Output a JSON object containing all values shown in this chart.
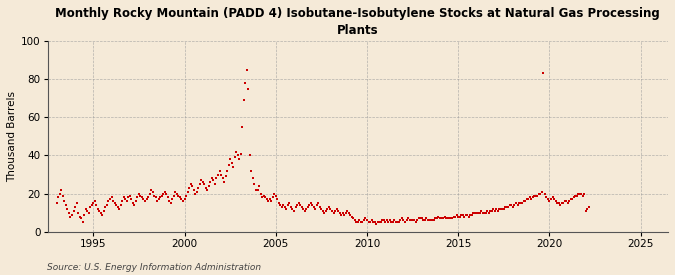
{
  "title": "Monthly Rocky Mountain (PADD 4) Isobutane-Isobutylene Stocks at Natural Gas Processing\nPlants",
  "ylabel": "Thousand Barrels",
  "source": "Source: U.S. Energy Information Administration",
  "background_color": "#f5ead8",
  "plot_bg_color": "#f5ead8",
  "dot_color": "#cc0000",
  "dot_size": 3,
  "xlim": [
    1992.5,
    2026.5
  ],
  "ylim": [
    0,
    100
  ],
  "yticks": [
    0,
    20,
    40,
    60,
    80,
    100
  ],
  "xticks": [
    1995,
    2000,
    2005,
    2010,
    2015,
    2020,
    2025
  ],
  "data": [
    [
      1993.0,
      15
    ],
    [
      1993.083,
      18
    ],
    [
      1993.167,
      20
    ],
    [
      1993.25,
      22
    ],
    [
      1993.333,
      19
    ],
    [
      1993.417,
      16
    ],
    [
      1993.5,
      14
    ],
    [
      1993.583,
      12
    ],
    [
      1993.667,
      10
    ],
    [
      1993.75,
      8
    ],
    [
      1993.833,
      9
    ],
    [
      1993.917,
      11
    ],
    [
      1994.0,
      13
    ],
    [
      1994.083,
      15
    ],
    [
      1994.167,
      10
    ],
    [
      1994.25,
      8
    ],
    [
      1994.333,
      7
    ],
    [
      1994.417,
      5
    ],
    [
      1994.5,
      9
    ],
    [
      1994.583,
      12
    ],
    [
      1994.667,
      11
    ],
    [
      1994.75,
      10
    ],
    [
      1994.833,
      13
    ],
    [
      1994.917,
      14
    ],
    [
      1995.0,
      15
    ],
    [
      1995.083,
      16
    ],
    [
      1995.167,
      14
    ],
    [
      1995.25,
      12
    ],
    [
      1995.333,
      11
    ],
    [
      1995.417,
      10
    ],
    [
      1995.5,
      9
    ],
    [
      1995.583,
      11
    ],
    [
      1995.667,
      13
    ],
    [
      1995.75,
      14
    ],
    [
      1995.833,
      16
    ],
    [
      1995.917,
      17
    ],
    [
      1996.0,
      18
    ],
    [
      1996.083,
      16
    ],
    [
      1996.167,
      15
    ],
    [
      1996.25,
      14
    ],
    [
      1996.333,
      13
    ],
    [
      1996.417,
      12
    ],
    [
      1996.5,
      14
    ],
    [
      1996.583,
      16
    ],
    [
      1996.667,
      18
    ],
    [
      1996.75,
      17
    ],
    [
      1996.833,
      16
    ],
    [
      1996.917,
      18
    ],
    [
      1997.0,
      19
    ],
    [
      1997.083,
      17
    ],
    [
      1997.167,
      15
    ],
    [
      1997.25,
      14
    ],
    [
      1997.333,
      16
    ],
    [
      1997.417,
      18
    ],
    [
      1997.5,
      20
    ],
    [
      1997.583,
      19
    ],
    [
      1997.667,
      18
    ],
    [
      1997.75,
      17
    ],
    [
      1997.833,
      16
    ],
    [
      1997.917,
      17
    ],
    [
      1998.0,
      18
    ],
    [
      1998.083,
      20
    ],
    [
      1998.167,
      22
    ],
    [
      1998.25,
      21
    ],
    [
      1998.333,
      19
    ],
    [
      1998.417,
      18
    ],
    [
      1998.5,
      16
    ],
    [
      1998.583,
      17
    ],
    [
      1998.667,
      18
    ],
    [
      1998.75,
      19
    ],
    [
      1998.833,
      20
    ],
    [
      1998.917,
      21
    ],
    [
      1999.0,
      20
    ],
    [
      1999.083,
      18
    ],
    [
      1999.167,
      16
    ],
    [
      1999.25,
      15
    ],
    [
      1999.333,
      17
    ],
    [
      1999.417,
      19
    ],
    [
      1999.5,
      21
    ],
    [
      1999.583,
      20
    ],
    [
      1999.667,
      19
    ],
    [
      1999.75,
      18
    ],
    [
      1999.833,
      17
    ],
    [
      1999.917,
      16
    ],
    [
      2000.0,
      17
    ],
    [
      2000.083,
      19
    ],
    [
      2000.167,
      21
    ],
    [
      2000.25,
      23
    ],
    [
      2000.333,
      25
    ],
    [
      2000.417,
      24
    ],
    [
      2000.5,
      22
    ],
    [
      2000.583,
      20
    ],
    [
      2000.667,
      21
    ],
    [
      2000.75,
      23
    ],
    [
      2000.833,
      25
    ],
    [
      2000.917,
      27
    ],
    [
      2001.0,
      26
    ],
    [
      2001.083,
      25
    ],
    [
      2001.167,
      23
    ],
    [
      2001.25,
      22
    ],
    [
      2001.333,
      24
    ],
    [
      2001.417,
      26
    ],
    [
      2001.5,
      28
    ],
    [
      2001.583,
      27
    ],
    [
      2001.667,
      25
    ],
    [
      2001.75,
      28
    ],
    [
      2001.833,
      30
    ],
    [
      2001.917,
      32
    ],
    [
      2002.0,
      30
    ],
    [
      2002.083,
      28
    ],
    [
      2002.167,
      26
    ],
    [
      2002.25,
      29
    ],
    [
      2002.333,
      32
    ],
    [
      2002.417,
      35
    ],
    [
      2002.5,
      38
    ],
    [
      2002.583,
      36
    ],
    [
      2002.667,
      34
    ],
    [
      2002.75,
      39
    ],
    [
      2002.833,
      42
    ],
    [
      2002.917,
      40
    ],
    [
      2003.0,
      38
    ],
    [
      2003.083,
      41
    ],
    [
      2003.167,
      55
    ],
    [
      2003.25,
      69
    ],
    [
      2003.333,
      78
    ],
    [
      2003.417,
      85
    ],
    [
      2003.5,
      75
    ],
    [
      2003.583,
      40
    ],
    [
      2003.667,
      32
    ],
    [
      2003.75,
      28
    ],
    [
      2003.833,
      25
    ],
    [
      2003.917,
      22
    ],
    [
      2004.0,
      22
    ],
    [
      2004.083,
      24
    ],
    [
      2004.167,
      20
    ],
    [
      2004.25,
      18
    ],
    [
      2004.333,
      19
    ],
    [
      2004.417,
      18
    ],
    [
      2004.5,
      17
    ],
    [
      2004.583,
      16
    ],
    [
      2004.667,
      17
    ],
    [
      2004.75,
      16
    ],
    [
      2004.833,
      18
    ],
    [
      2004.917,
      20
    ],
    [
      2005.0,
      19
    ],
    [
      2005.083,
      17
    ],
    [
      2005.167,
      15
    ],
    [
      2005.25,
      14
    ],
    [
      2005.333,
      13
    ],
    [
      2005.417,
      14
    ],
    [
      2005.5,
      13
    ],
    [
      2005.583,
      12
    ],
    [
      2005.667,
      14
    ],
    [
      2005.75,
      15
    ],
    [
      2005.833,
      13
    ],
    [
      2005.917,
      12
    ],
    [
      2006.0,
      11
    ],
    [
      2006.083,
      13
    ],
    [
      2006.167,
      14
    ],
    [
      2006.25,
      15
    ],
    [
      2006.333,
      14
    ],
    [
      2006.417,
      13
    ],
    [
      2006.5,
      12
    ],
    [
      2006.583,
      11
    ],
    [
      2006.667,
      12
    ],
    [
      2006.75,
      13
    ],
    [
      2006.833,
      14
    ],
    [
      2006.917,
      15
    ],
    [
      2007.0,
      14
    ],
    [
      2007.083,
      13
    ],
    [
      2007.167,
      12
    ],
    [
      2007.25,
      14
    ],
    [
      2007.333,
      15
    ],
    [
      2007.417,
      13
    ],
    [
      2007.5,
      12
    ],
    [
      2007.583,
      11
    ],
    [
      2007.667,
      10
    ],
    [
      2007.75,
      11
    ],
    [
      2007.833,
      12
    ],
    [
      2007.917,
      13
    ],
    [
      2008.0,
      12
    ],
    [
      2008.083,
      11
    ],
    [
      2008.167,
      10
    ],
    [
      2008.25,
      11
    ],
    [
      2008.333,
      12
    ],
    [
      2008.417,
      11
    ],
    [
      2008.5,
      10
    ],
    [
      2008.583,
      9
    ],
    [
      2008.667,
      10
    ],
    [
      2008.75,
      9
    ],
    [
      2008.833,
      10
    ],
    [
      2008.917,
      11
    ],
    [
      2009.0,
      10
    ],
    [
      2009.083,
      9
    ],
    [
      2009.167,
      8
    ],
    [
      2009.25,
      7
    ],
    [
      2009.333,
      6
    ],
    [
      2009.417,
      5
    ],
    [
      2009.5,
      5
    ],
    [
      2009.583,
      6
    ],
    [
      2009.667,
      5
    ],
    [
      2009.75,
      5
    ],
    [
      2009.833,
      6
    ],
    [
      2009.917,
      7
    ],
    [
      2010.0,
      6
    ],
    [
      2010.083,
      5
    ],
    [
      2010.167,
      5
    ],
    [
      2010.25,
      6
    ],
    [
      2010.333,
      5
    ],
    [
      2010.417,
      5
    ],
    [
      2010.5,
      4
    ],
    [
      2010.583,
      5
    ],
    [
      2010.667,
      5
    ],
    [
      2010.75,
      5
    ],
    [
      2010.833,
      6
    ],
    [
      2010.917,
      6
    ],
    [
      2011.0,
      5
    ],
    [
      2011.083,
      6
    ],
    [
      2011.167,
      5
    ],
    [
      2011.25,
      6
    ],
    [
      2011.333,
      5
    ],
    [
      2011.417,
      5
    ],
    [
      2011.5,
      6
    ],
    [
      2011.583,
      5
    ],
    [
      2011.667,
      5
    ],
    [
      2011.75,
      5
    ],
    [
      2011.833,
      6
    ],
    [
      2011.917,
      7
    ],
    [
      2012.0,
      6
    ],
    [
      2012.083,
      5
    ],
    [
      2012.167,
      6
    ],
    [
      2012.25,
      7
    ],
    [
      2012.333,
      6
    ],
    [
      2012.417,
      6
    ],
    [
      2012.5,
      6
    ],
    [
      2012.583,
      6
    ],
    [
      2012.667,
      5
    ],
    [
      2012.75,
      6
    ],
    [
      2012.833,
      7
    ],
    [
      2012.917,
      7
    ],
    [
      2013.0,
      7
    ],
    [
      2013.083,
      6
    ],
    [
      2013.167,
      6
    ],
    [
      2013.25,
      7
    ],
    [
      2013.333,
      6
    ],
    [
      2013.417,
      6
    ],
    [
      2013.5,
      6
    ],
    [
      2013.583,
      6
    ],
    [
      2013.667,
      6
    ],
    [
      2013.75,
      7
    ],
    [
      2013.833,
      7
    ],
    [
      2013.917,
      8
    ],
    [
      2014.0,
      7
    ],
    [
      2014.083,
      7
    ],
    [
      2014.167,
      7
    ],
    [
      2014.25,
      8
    ],
    [
      2014.333,
      7
    ],
    [
      2014.417,
      7
    ],
    [
      2014.5,
      7
    ],
    [
      2014.583,
      7
    ],
    [
      2014.667,
      7
    ],
    [
      2014.75,
      8
    ],
    [
      2014.833,
      8
    ],
    [
      2014.917,
      9
    ],
    [
      2015.0,
      8
    ],
    [
      2015.083,
      8
    ],
    [
      2015.167,
      9
    ],
    [
      2015.25,
      9
    ],
    [
      2015.333,
      8
    ],
    [
      2015.417,
      9
    ],
    [
      2015.5,
      9
    ],
    [
      2015.583,
      8
    ],
    [
      2015.667,
      9
    ],
    [
      2015.75,
      9
    ],
    [
      2015.833,
      10
    ],
    [
      2015.917,
      10
    ],
    [
      2016.0,
      10
    ],
    [
      2016.083,
      10
    ],
    [
      2016.167,
      10
    ],
    [
      2016.25,
      11
    ],
    [
      2016.333,
      10
    ],
    [
      2016.417,
      10
    ],
    [
      2016.5,
      10
    ],
    [
      2016.583,
      11
    ],
    [
      2016.667,
      10
    ],
    [
      2016.75,
      11
    ],
    [
      2016.833,
      11
    ],
    [
      2016.917,
      12
    ],
    [
      2017.0,
      11
    ],
    [
      2017.083,
      12
    ],
    [
      2017.167,
      11
    ],
    [
      2017.25,
      12
    ],
    [
      2017.333,
      12
    ],
    [
      2017.417,
      12
    ],
    [
      2017.5,
      12
    ],
    [
      2017.583,
      13
    ],
    [
      2017.667,
      13
    ],
    [
      2017.75,
      13
    ],
    [
      2017.833,
      14
    ],
    [
      2017.917,
      14
    ],
    [
      2018.0,
      13
    ],
    [
      2018.083,
      14
    ],
    [
      2018.167,
      15
    ],
    [
      2018.25,
      14
    ],
    [
      2018.333,
      15
    ],
    [
      2018.417,
      15
    ],
    [
      2018.5,
      15
    ],
    [
      2018.583,
      16
    ],
    [
      2018.667,
      16
    ],
    [
      2018.75,
      17
    ],
    [
      2018.833,
      17
    ],
    [
      2018.917,
      18
    ],
    [
      2019.0,
      17
    ],
    [
      2019.083,
      18
    ],
    [
      2019.167,
      19
    ],
    [
      2019.25,
      19
    ],
    [
      2019.333,
      19
    ],
    [
      2019.417,
      20
    ],
    [
      2019.5,
      20
    ],
    [
      2019.583,
      21
    ],
    [
      2019.667,
      83
    ],
    [
      2019.75,
      20
    ],
    [
      2019.833,
      18
    ],
    [
      2019.917,
      17
    ],
    [
      2020.0,
      16
    ],
    [
      2020.083,
      17
    ],
    [
      2020.167,
      18
    ],
    [
      2020.25,
      17
    ],
    [
      2020.333,
      16
    ],
    [
      2020.417,
      15
    ],
    [
      2020.5,
      15
    ],
    [
      2020.583,
      14
    ],
    [
      2020.667,
      15
    ],
    [
      2020.75,
      15
    ],
    [
      2020.833,
      16
    ],
    [
      2020.917,
      16
    ],
    [
      2021.0,
      15
    ],
    [
      2021.083,
      16
    ],
    [
      2021.167,
      17
    ],
    [
      2021.25,
      17
    ],
    [
      2021.333,
      18
    ],
    [
      2021.417,
      19
    ],
    [
      2021.5,
      19
    ],
    [
      2021.583,
      20
    ],
    [
      2021.667,
      20
    ],
    [
      2021.75,
      20
    ],
    [
      2021.833,
      19
    ],
    [
      2021.917,
      20
    ],
    [
      2022.0,
      11
    ],
    [
      2022.083,
      12
    ],
    [
      2022.167,
      13
    ]
  ]
}
